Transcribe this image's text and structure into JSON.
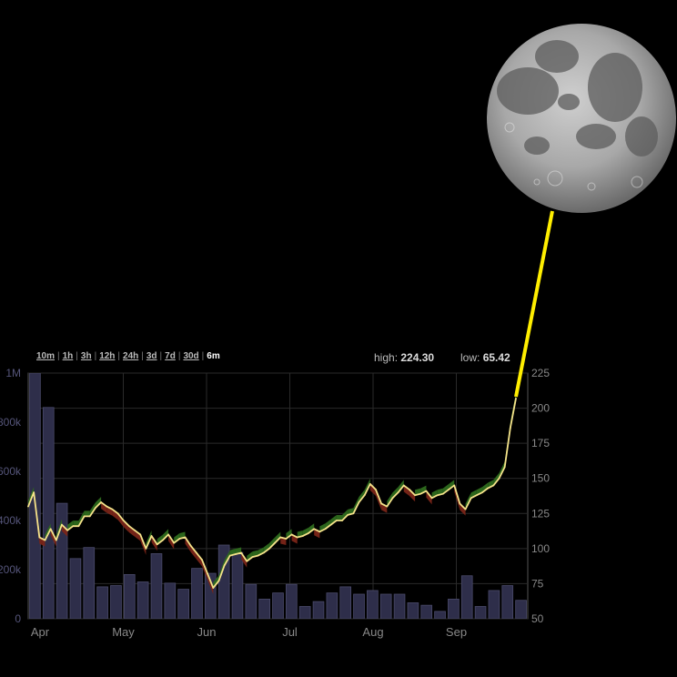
{
  "range_selector": {
    "options": [
      "10m",
      "1h",
      "3h",
      "12h",
      "24h",
      "3d",
      "7d",
      "30d",
      "6m"
    ],
    "active": "6m"
  },
  "stats": {
    "high_label": "high:",
    "high_value": "224.30",
    "low_label": "low:",
    "low_value": "65.42"
  },
  "colors": {
    "background": "#000000",
    "grid": "#2a2a2a",
    "volume_bar": "#2e2e4a",
    "volume_bar_stroke": "#4a4a6a",
    "price_line": "#f4e28a",
    "up_fill": "#2e6b1e",
    "down_fill": "#7a2518",
    "tether": "#ffee00",
    "axis_text": "#888888",
    "left_axis_text": "#55557a"
  },
  "chart_data": {
    "type": "line",
    "x_axis": {
      "ticks": [
        "Apr",
        "May",
        "Jun",
        "Jul",
        "Aug",
        "Sep"
      ]
    },
    "price_axis": {
      "range": [
        50,
        225
      ],
      "ticks": [
        50,
        75,
        100,
        125,
        150,
        175,
        200,
        225
      ],
      "side": "right"
    },
    "volume_axis": {
      "range": [
        0,
        1000000
      ],
      "ticks": [
        "0",
        "200k",
        "400k",
        "600k",
        "800k",
        "1M"
      ],
      "side": "left"
    },
    "grid": true,
    "series": [
      {
        "kind": "price",
        "values": [
          130,
          140,
          108,
          106,
          114,
          106,
          117,
          113,
          116,
          116,
          123,
          123,
          129,
          133,
          130,
          128,
          125,
          120,
          116,
          113,
          110,
          100,
          109,
          103,
          106,
          110,
          104,
          107,
          108,
          102,
          97,
          92,
          82,
          72,
          77,
          88,
          95,
          96,
          97,
          91,
          94,
          95,
          97,
          100,
          104,
          108,
          107,
          110,
          108,
          109,
          111,
          114,
          112,
          114,
          117,
          120,
          120,
          124,
          125,
          133,
          138,
          146,
          142,
          132,
          130,
          136,
          140,
          145,
          142,
          138,
          139,
          141,
          136,
          138,
          139,
          142,
          145,
          132,
          128,
          136,
          138,
          140,
          143,
          145,
          150,
          158,
          186,
          207
        ]
      },
      {
        "kind": "volume",
        "values": [
          1050000,
          860000,
          470000,
          245000,
          290000,
          130000,
          135000,
          180000,
          150000,
          265000,
          145000,
          120000,
          205000,
          185000,
          300000,
          270000,
          140000,
          80000,
          105000,
          140000,
          50000,
          70000,
          105000,
          130000,
          100000,
          115000,
          100000,
          100000,
          65000,
          55000,
          30000,
          80000,
          175000,
          50000,
          115000,
          135000,
          75000
        ]
      }
    ]
  }
}
